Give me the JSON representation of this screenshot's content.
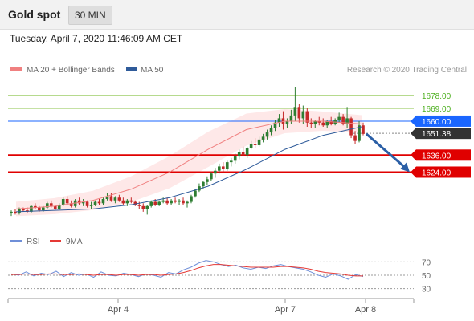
{
  "header": {
    "title": "Gold spot",
    "timeframe": "30 MIN"
  },
  "datetime": "Tuesday, April 7, 2020 11:46:09 AM CET",
  "legend": {
    "ma20_label": "MA 20 + Bollinger Bands",
    "ma50_label": "MA 50",
    "credit": "Research © 2020 Trading Central",
    "rsi_label": "RSI",
    "rsi_ma_label": "9MA"
  },
  "colors": {
    "bullish": "#2e7d32",
    "bearish": "#c62828",
    "resistance": "#8bc34a",
    "pivot": "#1a66ff",
    "support": "#e00000",
    "current": "#333333",
    "ma20": "#f08080",
    "ma50": "#2f5b9a",
    "band_fill": "#fde0e0",
    "arrow": "#2b5fa6",
    "rsi": "#6f8fd8",
    "rsi_ma": "#e53935"
  },
  "chart_data": [
    {
      "type": "candlestick",
      "ylim": [
        1588,
        1690
      ],
      "x_labels": [
        "Apr 4",
        "Apr 7",
        "Apr 8"
      ],
      "levels": [
        {
          "value": 1678.0,
          "label": "1678.00",
          "kind": "resistance"
        },
        {
          "value": 1669.0,
          "label": "1669.00",
          "kind": "resistance"
        },
        {
          "value": 1660.0,
          "label": "1660.00",
          "kind": "pivot"
        },
        {
          "value": 1651.38,
          "label": "1651.38",
          "kind": "current"
        },
        {
          "value": 1636.0,
          "label": "1636.00",
          "kind": "support"
        },
        {
          "value": 1624.0,
          "label": "1624.00",
          "kind": "support"
        }
      ],
      "ohlc_approx": [
        [
          1595,
          1597,
          1593,
          1596
        ],
        [
          1596,
          1598,
          1594,
          1595
        ],
        [
          1595,
          1599,
          1594,
          1598
        ],
        [
          1598,
          1599,
          1596,
          1597
        ],
        [
          1597,
          1599,
          1595,
          1596
        ],
        [
          1596,
          1601,
          1595,
          1600
        ],
        [
          1600,
          1602,
          1598,
          1599
        ],
        [
          1599,
          1600,
          1596,
          1597
        ],
        [
          1597,
          1600,
          1596,
          1599
        ],
        [
          1599,
          1603,
          1598,
          1602
        ],
        [
          1602,
          1604,
          1599,
          1600
        ],
        [
          1600,
          1601,
          1597,
          1598
        ],
        [
          1598,
          1602,
          1597,
          1601
        ],
        [
          1601,
          1606,
          1600,
          1605
        ],
        [
          1605,
          1607,
          1601,
          1602
        ],
        [
          1602,
          1604,
          1599,
          1600
        ],
        [
          1600,
          1605,
          1599,
          1604
        ],
        [
          1604,
          1606,
          1601,
          1602
        ],
        [
          1602,
          1605,
          1600,
          1603
        ],
        [
          1603,
          1604,
          1599,
          1600
        ],
        [
          1600,
          1603,
          1598,
          1601
        ],
        [
          1601,
          1604,
          1600,
          1603
        ],
        [
          1603,
          1605,
          1601,
          1602
        ],
        [
          1602,
          1606,
          1601,
          1605
        ],
        [
          1605,
          1609,
          1604,
          1607
        ],
        [
          1607,
          1609,
          1603,
          1604
        ],
        [
          1604,
          1607,
          1602,
          1606
        ],
        [
          1606,
          1608,
          1603,
          1604
        ],
        [
          1604,
          1606,
          1601,
          1602
        ],
        [
          1602,
          1605,
          1600,
          1604
        ],
        [
          1604,
          1606,
          1602,
          1603
        ],
        [
          1603,
          1604,
          1600,
          1601
        ],
        [
          1601,
          1603,
          1598,
          1600
        ],
        [
          1600,
          1602,
          1596,
          1598
        ],
        [
          1598,
          1601,
          1594,
          1600
        ],
        [
          1600,
          1604,
          1599,
          1603
        ],
        [
          1603,
          1605,
          1600,
          1601
        ],
        [
          1601,
          1604,
          1600,
          1603
        ],
        [
          1603,
          1606,
          1602,
          1604
        ],
        [
          1604,
          1606,
          1601,
          1602
        ],
        [
          1602,
          1605,
          1601,
          1604
        ],
        [
          1604,
          1606,
          1602,
          1603
        ],
        [
          1603,
          1605,
          1601,
          1604
        ],
        [
          1604,
          1606,
          1601,
          1602
        ],
        [
          1602,
          1604,
          1599,
          1603
        ],
        [
          1603,
          1608,
          1602,
          1607
        ],
        [
          1607,
          1612,
          1606,
          1611
        ],
        [
          1611,
          1616,
          1610,
          1614
        ],
        [
          1614,
          1618,
          1612,
          1617
        ],
        [
          1617,
          1621,
          1615,
          1619
        ],
        [
          1619,
          1624,
          1618,
          1623
        ],
        [
          1623,
          1627,
          1620,
          1625
        ],
        [
          1625,
          1630,
          1623,
          1628
        ],
        [
          1628,
          1631,
          1624,
          1626
        ],
        [
          1626,
          1632,
          1625,
          1631
        ],
        [
          1631,
          1634,
          1628,
          1632
        ],
        [
          1632,
          1637,
          1630,
          1635
        ],
        [
          1635,
          1640,
          1633,
          1638
        ],
        [
          1638,
          1642,
          1635,
          1636
        ],
        [
          1636,
          1642,
          1634,
          1641
        ],
        [
          1641,
          1646,
          1640,
          1644
        ],
        [
          1644,
          1648,
          1641,
          1643
        ],
        [
          1643,
          1649,
          1642,
          1647
        ],
        [
          1647,
          1651,
          1645,
          1649
        ],
        [
          1649,
          1654,
          1647,
          1652
        ],
        [
          1652,
          1657,
          1650,
          1655
        ],
        [
          1655,
          1661,
          1653,
          1659
        ],
        [
          1659,
          1665,
          1656,
          1662
        ],
        [
          1662,
          1667,
          1654,
          1658
        ],
        [
          1658,
          1662,
          1655,
          1660
        ],
        [
          1660,
          1668,
          1658,
          1664
        ],
        [
          1664,
          1684,
          1660,
          1670
        ],
        [
          1670,
          1672,
          1659,
          1662
        ],
        [
          1662,
          1671,
          1658,
          1667
        ],
        [
          1667,
          1669,
          1656,
          1659
        ],
        [
          1659,
          1662,
          1655,
          1658
        ],
        [
          1658,
          1661,
          1655,
          1660
        ],
        [
          1660,
          1663,
          1657,
          1659
        ],
        [
          1659,
          1662,
          1656,
          1657
        ],
        [
          1657,
          1661,
          1655,
          1660
        ],
        [
          1660,
          1663,
          1657,
          1658
        ],
        [
          1658,
          1662,
          1657,
          1661
        ],
        [
          1661,
          1666,
          1659,
          1663
        ],
        [
          1663,
          1665,
          1657,
          1658
        ],
        [
          1658,
          1670,
          1655,
          1662
        ],
        [
          1662,
          1663,
          1648,
          1650
        ],
        [
          1650,
          1653,
          1644,
          1646
        ],
        [
          1646,
          1660,
          1645,
          1657
        ],
        [
          1657,
          1659,
          1650,
          1651
        ]
      ],
      "ma20_approx": [
        1598,
        1600,
        1604,
        1612,
        1624,
        1640,
        1654,
        1660,
        1660,
        1658
      ],
      "ma50_approx": [
        1596,
        1597,
        1598,
        1601,
        1606,
        1614,
        1626,
        1640,
        1650,
        1656
      ],
      "forecast_target": 1624.0
    },
    {
      "type": "line",
      "title": "RSI",
      "ylim": [
        20,
        80
      ],
      "ticks": [
        30,
        50,
        70
      ],
      "series": [
        {
          "name": "RSI",
          "values": [
            52,
            50,
            55,
            49,
            53,
            51,
            56,
            48,
            54,
            50,
            52,
            47,
            55,
            50,
            49,
            53,
            51,
            48,
            52,
            50,
            47,
            54,
            52,
            58,
            62,
            68,
            72,
            70,
            66,
            63,
            65,
            61,
            59,
            62,
            60,
            64,
            66,
            63,
            61,
            59,
            55,
            50,
            47,
            52,
            49,
            44,
            51,
            48
          ]
        },
        {
          "name": "9MA",
          "values": [
            51,
            51,
            52,
            51,
            51,
            52,
            52,
            51,
            51,
            52,
            51,
            50,
            51,
            51,
            50,
            51,
            51,
            50,
            51,
            51,
            50,
            51,
            52,
            54,
            57,
            61,
            64,
            66,
            66,
            65,
            64,
            63,
            62,
            62,
            62,
            62,
            63,
            63,
            62,
            61,
            59,
            56,
            54,
            53,
            52,
            50,
            49,
            49
          ]
        }
      ]
    }
  ]
}
